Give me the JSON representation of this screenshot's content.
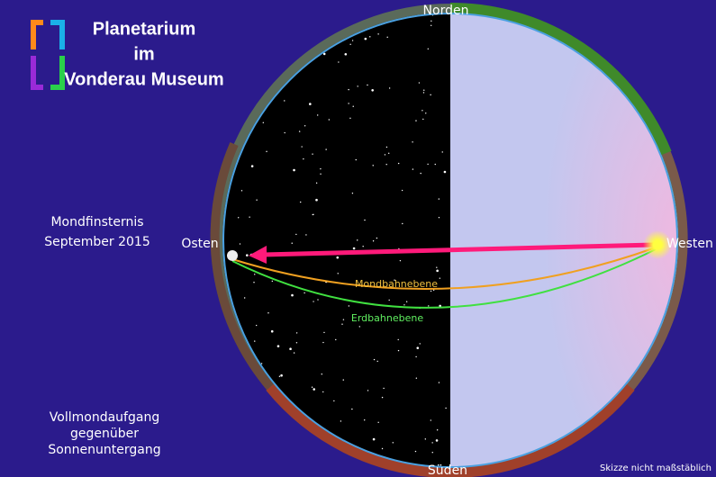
{
  "logo": {
    "lines": [
      "Planetarium",
      "im",
      "Vonderau Museum"
    ]
  },
  "event": {
    "lines": [
      "Mondfinsternis",
      "September 2015"
    ]
  },
  "directions": {
    "north": "Norden",
    "south": "Süden",
    "east": "Osten",
    "west": "Westen"
  },
  "planes": {
    "moon": "Mondbahnebene",
    "earth": "Erdbahnebene"
  },
  "caption": {
    "lines": [
      "Vollmondaufgang",
      "gegenüber",
      "Sonnenuntergang"
    ]
  },
  "note": "Skizze nicht maßstäblich"
}
